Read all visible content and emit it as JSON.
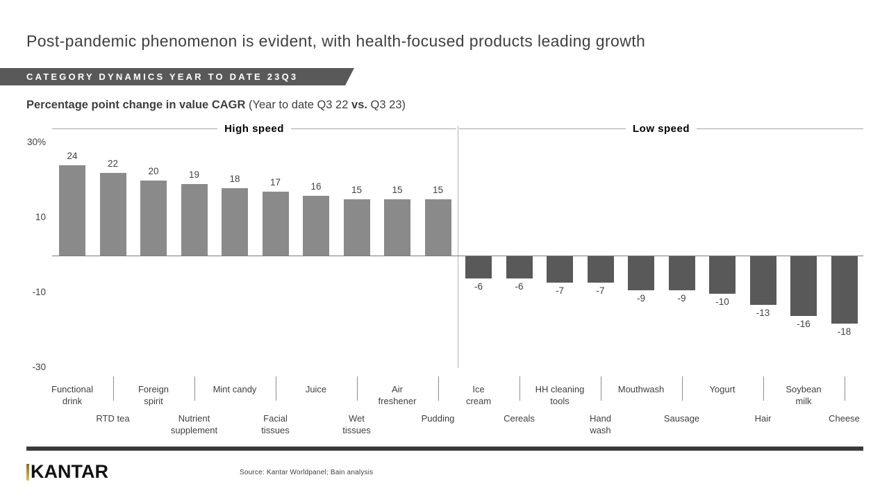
{
  "page": {
    "title": "Post-pandemic phenomenon is evident, with health-focused products leading growth",
    "banner": "CATEGORY DYNAMICS YEAR TO DATE 23Q3",
    "subtitle": {
      "bold": "Percentage point change in value CAGR",
      "pre": "(Year to date Q3 22",
      "vs": "vs.",
      "post": "Q3 23)"
    }
  },
  "chart_data": {
    "type": "bar",
    "title": "Percentage point change in value CAGR (Year to date Q3 22 vs. Q3 23)",
    "ylim": [
      -30,
      30
    ],
    "grid": "off",
    "yticks": [
      {
        "label": "30%",
        "value": 30
      },
      {
        "label": "10",
        "value": 10
      },
      {
        "label": "-10",
        "value": -10
      },
      {
        "label": "-30",
        "value": -30
      }
    ],
    "groups": [
      {
        "label": "High speed",
        "color": "#8a8a8a",
        "items": [
          {
            "name": "Functional drink",
            "display": "Functional\ndrink",
            "value": 24
          },
          {
            "name": "RTD tea",
            "display": "RTD tea",
            "value": 22
          },
          {
            "name": "Foreign spirit",
            "display": "Foreign\nspirit",
            "value": 20
          },
          {
            "name": "Nutrient supplement",
            "display": "Nutrient\nsupplement",
            "value": 19
          },
          {
            "name": "Mint candy",
            "display": "Mint candy",
            "value": 18
          },
          {
            "name": "Facial tissues",
            "display": "Facial\ntissues",
            "value": 17
          },
          {
            "name": "Juice",
            "display": "Juice",
            "value": 16
          },
          {
            "name": "Wet tissues",
            "display": "Wet\ntissues",
            "value": 15
          },
          {
            "name": "Air freshener",
            "display": "Air\nfreshener",
            "value": 15
          },
          {
            "name": "Pudding",
            "display": "Pudding",
            "value": 15
          }
        ]
      },
      {
        "label": "Low speed",
        "color": "#595959",
        "items": [
          {
            "name": "Ice cream",
            "display": "Ice\ncream",
            "value": -6
          },
          {
            "name": "Cereals",
            "display": "Cereals",
            "value": -6
          },
          {
            "name": "HH cleaning tools",
            "display": "HH cleaning\ntools",
            "value": -7
          },
          {
            "name": "Hand wash",
            "display": "Hand\nwash",
            "value": -7
          },
          {
            "name": "Mouthwash",
            "display": "Mouthwash",
            "value": -9
          },
          {
            "name": "Sausage",
            "display": "Sausage",
            "value": -9
          },
          {
            "name": "Yogurt",
            "display": "Yogurt",
            "value": -10
          },
          {
            "name": "Hair",
            "display": "Hair",
            "value": -13
          },
          {
            "name": "Soybean milk",
            "display": "Soybean\nmilk",
            "value": -16
          },
          {
            "name": "Cheese",
            "display": "Cheese",
            "value": -18
          }
        ]
      }
    ]
  },
  "footer": {
    "logo_text": "KANTAR",
    "source": "Source: Kantar Worldpanel; Bain analysis"
  },
  "colors": {
    "banner_bg": "#595959",
    "high_bar": "#8a8a8a",
    "low_bar": "#595959",
    "accent_gold": "#c8a028",
    "footer_rule": "#3a3a3a"
  }
}
